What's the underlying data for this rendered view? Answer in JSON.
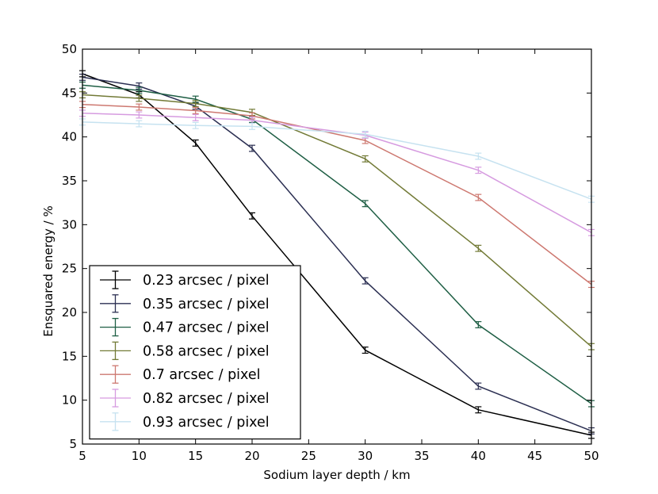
{
  "chart_data": {
    "type": "line",
    "title": "",
    "xlabel": "Sodium layer depth / km",
    "ylabel": "Ensquared energy / %",
    "xlim": [
      5,
      50
    ],
    "ylim": [
      5,
      50
    ],
    "xticks": [
      5,
      10,
      15,
      20,
      25,
      30,
      35,
      40,
      45,
      50
    ],
    "yticks": [
      5,
      10,
      15,
      20,
      25,
      30,
      35,
      40,
      45,
      50
    ],
    "x": [
      5,
      10,
      15,
      20,
      30,
      40,
      50
    ],
    "error": 0.35,
    "legend_position": "lower-left",
    "series": [
      {
        "name": "0.23 arcsec / pixel",
        "color": "#000000",
        "values": [
          47.2,
          44.8,
          39.3,
          31.0,
          15.7,
          8.9,
          6.0
        ]
      },
      {
        "name": "0.35 arcsec / pixel",
        "color": "#2b2f52",
        "values": [
          46.8,
          45.8,
          43.5,
          38.7,
          23.6,
          11.6,
          6.5
        ]
      },
      {
        "name": "0.47 arcsec / pixel",
        "color": "#1e5e44",
        "values": [
          45.9,
          45.3,
          44.3,
          42.0,
          32.4,
          18.6,
          9.6
        ]
      },
      {
        "name": "0.58 arcsec / pixel",
        "color": "#727a36",
        "values": [
          44.8,
          44.4,
          43.8,
          42.8,
          37.5,
          27.3,
          16.1
        ]
      },
      {
        "name": "0.7 arcsec / pixel",
        "color": "#cd7870",
        "values": [
          43.7,
          43.4,
          43.0,
          42.4,
          39.6,
          33.1,
          23.2
        ]
      },
      {
        "name": "0.82 arcsec / pixel",
        "color": "#d69be0",
        "values": [
          42.7,
          42.5,
          42.2,
          41.9,
          40.2,
          36.2,
          29.1
        ]
      },
      {
        "name": "0.93 arcsec / pixel",
        "color": "#c6e2f0",
        "values": [
          41.7,
          41.5,
          41.3,
          41.2,
          40.3,
          37.8,
          32.9
        ]
      }
    ]
  }
}
